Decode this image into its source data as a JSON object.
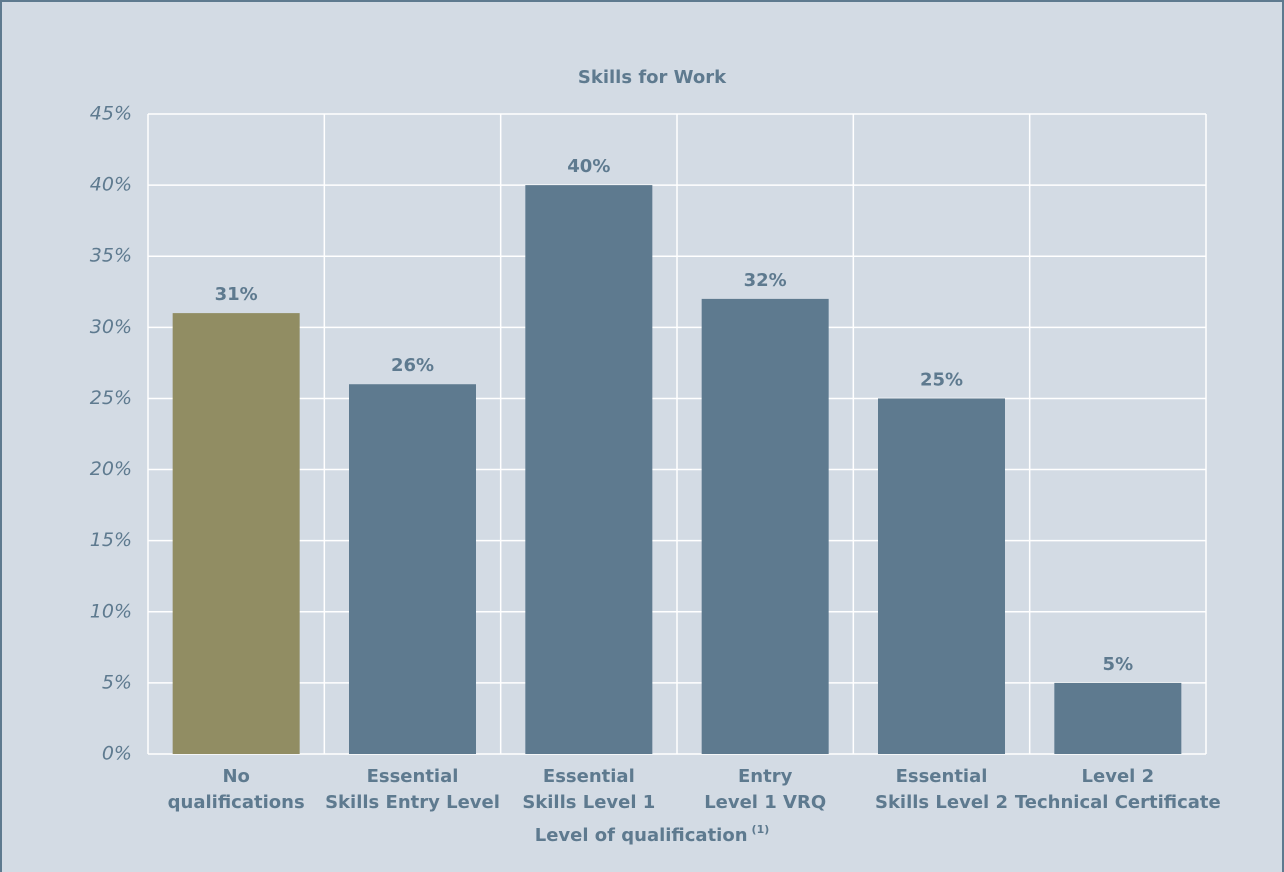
{
  "chart_data": {
    "type": "bar",
    "title": "Skills for Work",
    "x_label": "Level of qualification",
    "x_label_note": "(1)",
    "categories": [
      [
        "No",
        "qualifications"
      ],
      [
        "Essential",
        "Skills Entry Level"
      ],
      [
        "Essential",
        "Skills Level 1"
      ],
      [
        "Entry",
        "Level 1 VRQ"
      ],
      [
        "Essential",
        "Skills Level 2"
      ],
      [
        "Level 2",
        "Technical Certificate"
      ]
    ],
    "values": [
      31,
      26,
      40,
      32,
      25,
      5
    ],
    "value_labels": [
      "31%",
      "26%",
      "40%",
      "32%",
      "25%",
      "5%"
    ],
    "colors": [
      "#918d63",
      "#5e7a8f",
      "#5e7a8f",
      "#5e7a8f",
      "#5e7a8f",
      "#5e7a8f"
    ],
    "ylim": [
      0,
      45
    ],
    "yticks": [
      {
        "value": 0,
        "label": "0%"
      },
      {
        "value": 5,
        "label": "5%"
      },
      {
        "value": 10,
        "label": "10%"
      },
      {
        "value": 15,
        "label": "15%"
      },
      {
        "value": 20,
        "label": "20%"
      },
      {
        "value": 25,
        "label": "25%"
      },
      {
        "value": 30,
        "label": "30%"
      },
      {
        "value": 35,
        "label": "35%"
      },
      {
        "value": 40,
        "label": "40%"
      },
      {
        "value": 45,
        "label": "45%"
      }
    ],
    "grid": true
  }
}
